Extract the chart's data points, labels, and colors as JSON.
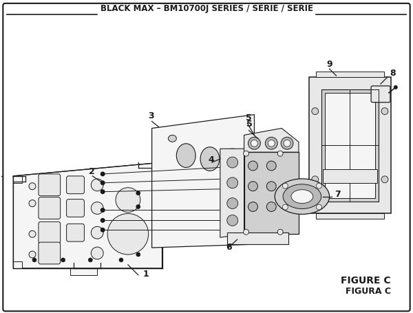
{
  "title": "BLACK MAX – BM10700J SERIES / SÉRIE / SERIE",
  "figure_label": "FIGURE C",
  "figura_label": "FIGURA C",
  "bg_color": "#ffffff",
  "border_color": "#000000",
  "title_fontsize": 8.5,
  "figure_label_fontsize": 10,
  "line_color": "#1a1a1a",
  "face_light": "#f5f5f5",
  "face_mid": "#e8e8e8",
  "face_dark": "#d0d0d0",
  "face_darker": "#b8b8b8"
}
